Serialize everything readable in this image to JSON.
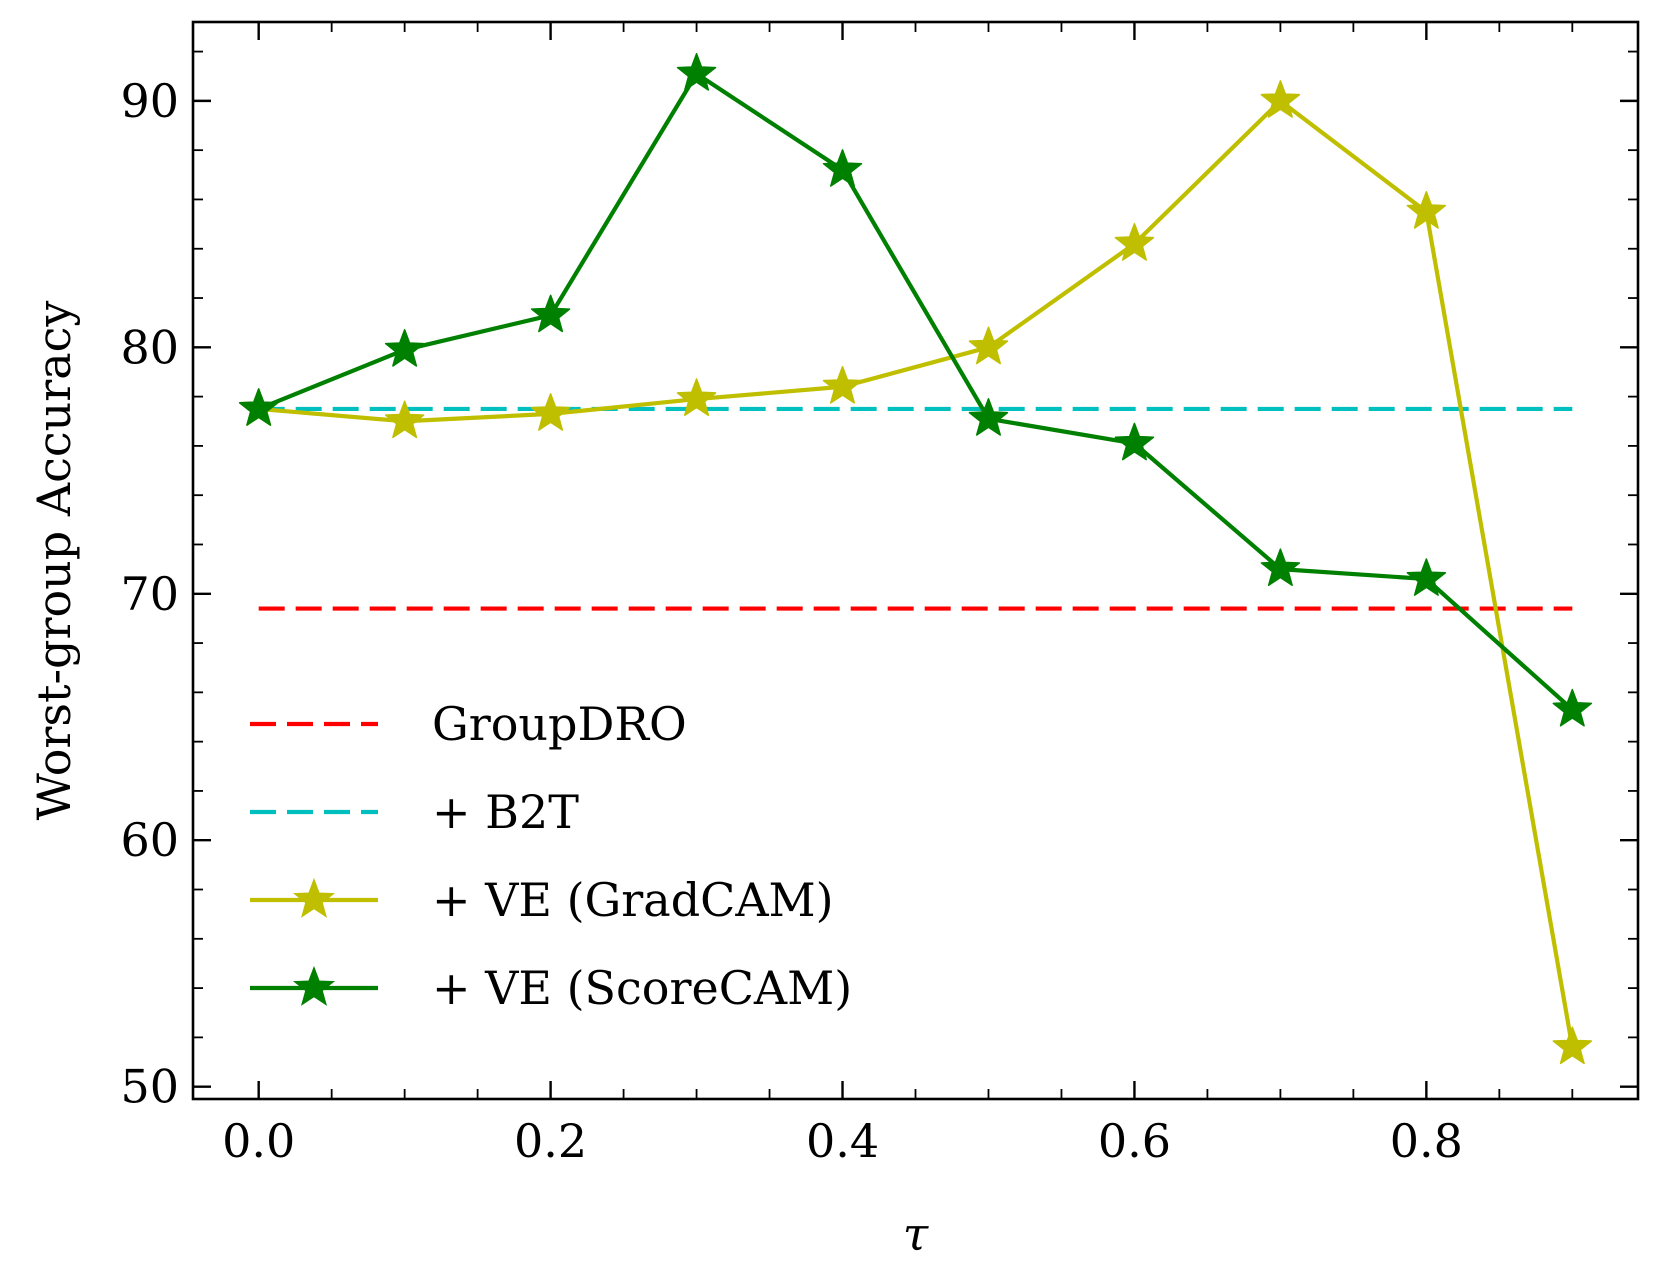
{
  "chart_data": {
    "type": "line",
    "title": "",
    "xlabel": "τ",
    "ylabel": "Worst-group Accuracy",
    "xlim": [
      -0.045,
      0.945
    ],
    "ylim": [
      49.5,
      93.2
    ],
    "x_ticks": [
      0.0,
      0.2,
      0.4,
      0.6,
      0.8
    ],
    "x_tick_labels": [
      "0.0",
      "0.2",
      "0.4",
      "0.6",
      "0.8"
    ],
    "y_ticks": [
      50,
      60,
      70,
      80,
      90
    ],
    "y_tick_labels": [
      "50",
      "60",
      "70",
      "80",
      "90"
    ],
    "grid": false,
    "legend_position": "lower-left",
    "series": [
      {
        "name": "GroupDRO",
        "style": "dashed",
        "color": "#ff0000",
        "marker": "none",
        "x": [
          0.0,
          0.9
        ],
        "y": [
          69.4,
          69.4
        ]
      },
      {
        "name": "+ B2T",
        "style": "dashed",
        "color": "#00bfbf",
        "marker": "none",
        "x": [
          0.0,
          0.9
        ],
        "y": [
          77.5,
          77.5
        ]
      },
      {
        "name": "+ VE (GradCAM)",
        "style": "solid",
        "color": "#bfbf00",
        "marker": "star",
        "x": [
          0.0,
          0.1,
          0.2,
          0.3,
          0.4,
          0.5,
          0.6,
          0.7,
          0.8,
          0.9
        ],
        "y": [
          77.5,
          77.0,
          77.3,
          77.9,
          78.4,
          80.0,
          84.2,
          90.0,
          85.5,
          51.6
        ]
      },
      {
        "name": "+ VE (ScoreCAM)",
        "style": "solid",
        "color": "#008000",
        "marker": "star",
        "x": [
          0.0,
          0.1,
          0.2,
          0.3,
          0.4,
          0.5,
          0.6,
          0.7,
          0.8,
          0.9
        ],
        "y": [
          77.5,
          79.9,
          81.3,
          91.1,
          87.2,
          77.1,
          76.1,
          71.0,
          70.6,
          65.3
        ]
      }
    ]
  }
}
